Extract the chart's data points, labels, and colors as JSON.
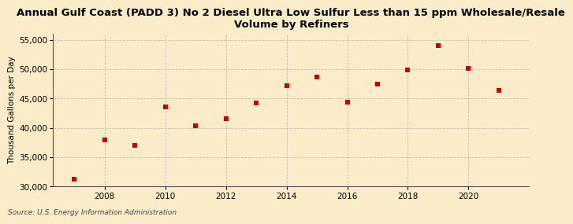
{
  "title": "Annual Gulf Coast (PADD 3) No 2 Diesel Ultra Low Sulfur Less than 15 ppm Wholesale/Resale\nVolume by Refiners",
  "ylabel": "Thousand Gallons per Day",
  "source": "Source: U.S. Energy Information Administration",
  "years": [
    2007,
    2008,
    2009,
    2010,
    2011,
    2012,
    2013,
    2014,
    2015,
    2016,
    2017,
    2018,
    2019,
    2020,
    2021
  ],
  "values": [
    31200,
    38000,
    37000,
    43500,
    40400,
    41600,
    44200,
    47200,
    48700,
    44300,
    47500,
    49900,
    54000,
    50100,
    46400
  ],
  "ylim": [
    30000,
    56000
  ],
  "yticks": [
    30000,
    35000,
    40000,
    45000,
    50000,
    55000
  ],
  "xticks": [
    2008,
    2010,
    2012,
    2014,
    2016,
    2018,
    2020
  ],
  "xlim_left": 2006.3,
  "xlim_right": 2022.0,
  "marker_color": "#cc0000",
  "marker": "s",
  "marker_size": 4,
  "background_color": "#faecc8",
  "grid_color": "#bbbbbb",
  "title_fontsize": 9.5,
  "label_fontsize": 7.5,
  "tick_fontsize": 7.5,
  "source_fontsize": 6.5
}
